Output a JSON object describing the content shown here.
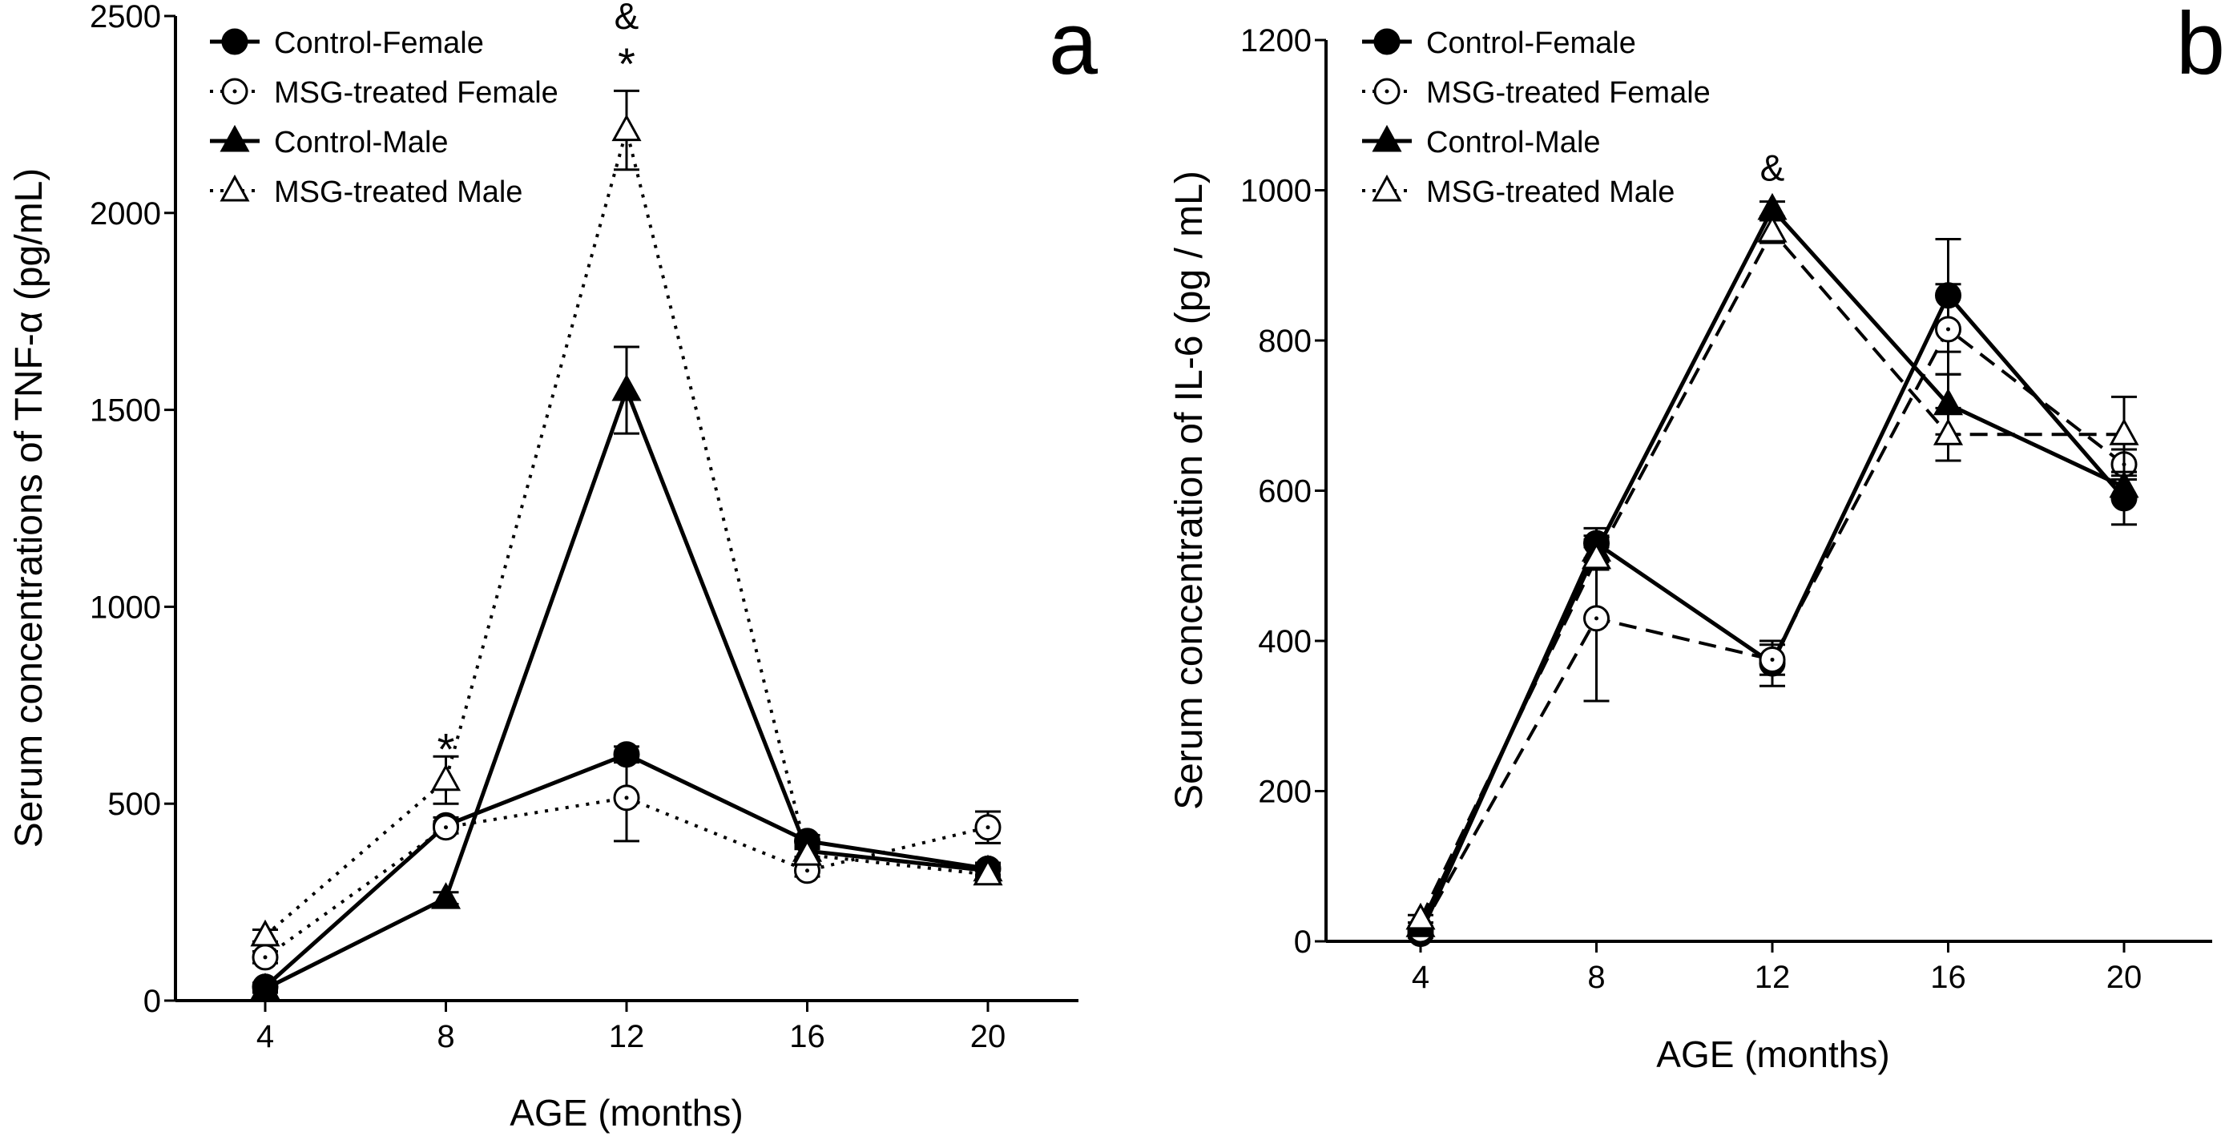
{
  "chart_data": [
    {
      "type": "line",
      "panel_label": "a",
      "xlabel": "AGE (months)",
      "ylabel": "Serum concentrations of TNF-α (pg/mL)",
      "x": [
        4,
        8,
        12,
        16,
        20
      ],
      "xticks": [
        "4",
        "8",
        "12",
        "16",
        "20"
      ],
      "xlim": [
        1,
        22.5
      ],
      "ylim": [
        0,
        2500
      ],
      "yticks": [
        "0",
        "500",
        "1000",
        "1500",
        "2000",
        "2500"
      ],
      "yticks_values": [
        0,
        500,
        1000,
        1500,
        2000,
        2500
      ],
      "legend_position": "top-left",
      "series": [
        {
          "name": "Control-Female",
          "marker": "filled-circle",
          "line": "solid",
          "values": [
            35,
            445,
            625,
            405,
            335
          ],
          "errors": [
            10,
            20,
            20,
            15,
            15
          ]
        },
        {
          "name": "MSG-treated Female",
          "marker": "open-circle",
          "line": "dotted",
          "values": [
            110,
            440,
            515,
            330,
            440
          ],
          "errors": [
            15,
            15,
            110,
            15,
            40
          ]
        },
        {
          "name": "Control-Male",
          "marker": "filled-triangle",
          "line": "solid",
          "values": [
            30,
            260,
            1550,
            380,
            330
          ],
          "errors": [
            10,
            15,
            110,
            15,
            15
          ]
        },
        {
          "name": "MSG-treated Male",
          "marker": "open-triangle",
          "line": "dotted",
          "values": [
            165,
            560,
            2210,
            370,
            320
          ],
          "errors": [
            15,
            60,
            100,
            15,
            15
          ]
        }
      ],
      "annotations": [
        {
          "x": 8,
          "y": 660,
          "text": "*"
        },
        {
          "x": 12,
          "y": 2400,
          "text": "*"
        },
        {
          "x": 12,
          "y": 2500,
          "text": "&"
        }
      ]
    },
    {
      "type": "line",
      "panel_label": "b",
      "xlabel": "AGE (months)",
      "ylabel": "Serum concentration of IL-6 (pg / mL)",
      "x": [
        4,
        8,
        12,
        16,
        20
      ],
      "xticks": [
        "4",
        "8",
        "12",
        "16",
        "20"
      ],
      "xlim": [
        1,
        22.5
      ],
      "ylim": [
        0,
        1200
      ],
      "yticks": [
        "0",
        "200",
        "400",
        "600",
        "800",
        "1000",
        "1200"
      ],
      "yticks_values": [
        0,
        200,
        400,
        600,
        800,
        1000,
        1200
      ],
      "legend_position": "top-left",
      "series": [
        {
          "name": "Control-Female",
          "marker": "filled-circle",
          "line": "solid",
          "values": [
            10,
            530,
            370,
            860,
            590
          ],
          "errors": [
            5,
            20,
            30,
            75,
            35
          ]
        },
        {
          "name": "MSG-treated Female",
          "marker": "open-circle",
          "line": "dashed",
          "values": [
            15,
            430,
            375,
            815,
            635
          ],
          "errors": [
            5,
            110,
            20,
            60,
            20
          ]
        },
        {
          "name": "Control-Male",
          "marker": "filled-triangle",
          "line": "solid",
          "values": [
            20,
            520,
            975,
            715,
            605
          ],
          "errors": [
            5,
            15,
            10,
            40,
            15
          ]
        },
        {
          "name": "MSG-treated Male",
          "marker": "open-triangle",
          "line": "dashed",
          "values": [
            30,
            510,
            945,
            675,
            675
          ],
          "errors": [
            5,
            15,
            15,
            35,
            50
          ]
        }
      ],
      "annotations": [
        {
          "x": 12,
          "y": 1030,
          "text": "&"
        }
      ]
    }
  ]
}
